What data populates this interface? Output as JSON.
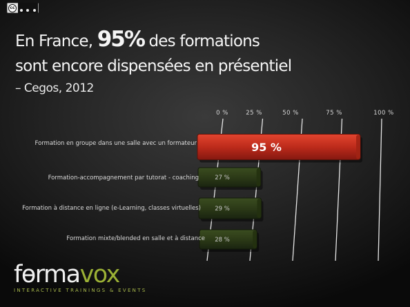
{
  "license_badge": {
    "text": "cc",
    "icon": "creative-commons-by-nc-sa-badge"
  },
  "title": {
    "line1_before": "En France,",
    "line1_highlight": "95%",
    "line1_after": "des formations",
    "line2": "sont encore dispensées en présentiel"
  },
  "source": "– Cegos, 2012",
  "chart_data": {
    "type": "bar",
    "orientation": "horizontal",
    "categories": [
      "Formation en groupe dans une salle avec un formateur",
      "Formation-accompagnement par tutorat - coaching",
      "Formation à distance en ligne (e-Learning, classes virtuelles)",
      "Formation mixte/blended en salle et à distance"
    ],
    "values": [
      95,
      27,
      29,
      28
    ],
    "value_labels": [
      "95 %",
      "27 %",
      "29 %",
      "28 %"
    ],
    "x_ticks": [
      "0 %",
      "25 %",
      "50 %",
      "75 %",
      "100 %"
    ],
    "x_tick_values": [
      0,
      25,
      50,
      75,
      100
    ],
    "xlim": [
      0,
      100
    ],
    "grid": true,
    "colors": {
      "highlight": "#c0301f",
      "default": "#2e3d18"
    },
    "highlight_index": 0
  },
  "logo": {
    "part1": "f",
    "symbol": "ɵ",
    "part2": "rma",
    "part3": "vox",
    "tagline": "INTERACTIVE TRAININGS & EVENTS"
  }
}
